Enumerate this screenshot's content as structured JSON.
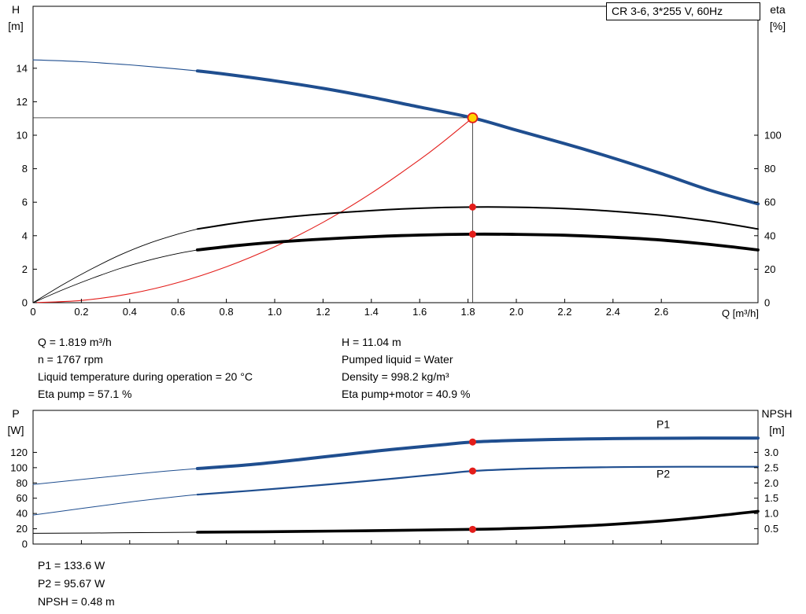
{
  "readings": {
    "top_left": [
      "Q = 1.819 m³/h",
      "n = 1767 rpm",
      "Liquid temperature during operation = 20 °C",
      "Eta pump = 57.1 %"
    ],
    "top_right": [
      "H = 11.04 m",
      "Pumped liquid = Water",
      "Density = 998.2 kg/m³",
      "Eta pump+motor = 40.9 %"
    ],
    "bottom": [
      "P1 = 133.6 W",
      "P2 = 95.67 W",
      "NPSH = 0.48 m"
    ]
  },
  "colors": {
    "blue": "#1f4e8f",
    "red": "#e31d1a",
    "black": "#000000",
    "duty_fill": "#ffd400"
  },
  "chart_data": [
    {
      "type": "line",
      "name": "head-efficiency-chart",
      "title": "CR 3-6, 3*255 V, 60Hz",
      "axes": {
        "x": {
          "min": 0,
          "max": 3.0,
          "label": "Q [m³/h]",
          "ticks": [
            0,
            0.2,
            0.4,
            0.6,
            0.8,
            1.0,
            1.2,
            1.4,
            1.6,
            1.8,
            2.0,
            2.2,
            2.4,
            2.6
          ],
          "tick_labels": [
            "0",
            "0.2",
            "0.4",
            "0.6",
            "0.8",
            "1.0",
            "1.2",
            "1.4",
            "1.6",
            "1.8",
            "2.0",
            "2.2",
            "2.4",
            "2.6"
          ]
        },
        "y_left": {
          "min": 0,
          "max": 17.7,
          "label": [
            "H",
            "[m]"
          ],
          "ticks": [
            0,
            2,
            4,
            6,
            8,
            10,
            12,
            14
          ],
          "tick_labels": [
            "0",
            "2",
            "4",
            "6",
            "8",
            "10",
            "12",
            "14"
          ]
        },
        "y_right": {
          "min": 0,
          "max": 177,
          "label": [
            "eta",
            "[%]"
          ],
          "ticks": [
            0,
            20,
            40,
            60,
            80,
            100
          ],
          "tick_labels": [
            "0",
            "20",
            "40",
            "60",
            "80",
            "100"
          ]
        }
      },
      "guides": [
        {
          "name": "duty-flow-line",
          "type": "v",
          "x": 1.819,
          "y1": 0,
          "y2": 11.04,
          "axis": "left"
        },
        {
          "name": "duty-head-line",
          "type": "h",
          "y": 11.04,
          "x1": 0,
          "x2": 1.819,
          "axis": "left"
        }
      ],
      "series": [
        {
          "name": "head-curve-lead",
          "axis": "left",
          "color": "#1f4e8f",
          "width": 1.1,
          "points": [
            [
              0,
              14.5
            ],
            [
              0.2,
              14.39
            ],
            [
              0.4,
              14.2
            ],
            [
              0.55,
              14.02
            ],
            [
              0.68,
              13.84
            ]
          ]
        },
        {
          "name": "head-curve",
          "axis": "left",
          "color": "#1f4e8f",
          "width": 4,
          "points": [
            [
              0.68,
              13.84
            ],
            [
              0.8,
              13.64
            ],
            [
              1.0,
              13.25
            ],
            [
              1.2,
              12.8
            ],
            [
              1.4,
              12.27
            ],
            [
              1.6,
              11.68
            ],
            [
              1.819,
              11.04
            ],
            [
              2.0,
              10.3
            ],
            [
              2.2,
              9.5
            ],
            [
              2.4,
              8.64
            ],
            [
              2.6,
              7.71
            ],
            [
              2.8,
              6.72
            ],
            [
              3.0,
              5.9
            ]
          ]
        },
        {
          "name": "system-curve",
          "axis": "left",
          "color": "#e31d1a",
          "width": 1.1,
          "points": [
            [
              0,
              0
            ],
            [
              0.2,
              0.13
            ],
            [
              0.4,
              0.53
            ],
            [
              0.6,
              1.2
            ],
            [
              0.8,
              2.14
            ],
            [
              1.0,
              3.34
            ],
            [
              1.2,
              4.8
            ],
            [
              1.4,
              6.54
            ],
            [
              1.6,
              8.54
            ],
            [
              1.7,
              9.64
            ],
            [
              1.819,
              11.04
            ]
          ]
        },
        {
          "name": "eta-pump-curve-lead",
          "axis": "right",
          "color": "#000000",
          "width": 0.9,
          "points": [
            [
              0,
              0
            ],
            [
              0.12,
              10.5
            ],
            [
              0.24,
              20
            ],
            [
              0.36,
              28.5
            ],
            [
              0.48,
              35.5
            ],
            [
              0.6,
              41
            ],
            [
              0.68,
              44
            ]
          ]
        },
        {
          "name": "eta-pump-curve",
          "axis": "right",
          "color": "#000000",
          "width": 2,
          "points": [
            [
              0.68,
              44
            ],
            [
              0.85,
              47.8
            ],
            [
              1.0,
              50.4
            ],
            [
              1.2,
              53
            ],
            [
              1.4,
              55
            ],
            [
              1.6,
              56.4
            ],
            [
              1.819,
              57.1
            ],
            [
              2.0,
              57
            ],
            [
              2.2,
              56.2
            ],
            [
              2.4,
              54.6
            ],
            [
              2.6,
              52.2
            ],
            [
              2.8,
              48.7
            ],
            [
              3.0,
              44
            ]
          ]
        },
        {
          "name": "eta-pump-motor-curve-lead",
          "axis": "right",
          "color": "#000000",
          "width": 0.9,
          "points": [
            [
              0,
              0
            ],
            [
              0.12,
              7.5
            ],
            [
              0.24,
              14.3
            ],
            [
              0.36,
              20.4
            ],
            [
              0.48,
              25.4
            ],
            [
              0.6,
              29.4
            ],
            [
              0.68,
              31.5
            ]
          ]
        },
        {
          "name": "eta-pump-motor-curve",
          "axis": "right",
          "color": "#000000",
          "width": 3.8,
          "points": [
            [
              0.68,
              31.5
            ],
            [
              0.85,
              34.2
            ],
            [
              1.0,
              36.1
            ],
            [
              1.2,
              38
            ],
            [
              1.4,
              39.4
            ],
            [
              1.6,
              40.4
            ],
            [
              1.819,
              40.9
            ],
            [
              2.0,
              40.8
            ],
            [
              2.2,
              40.3
            ],
            [
              2.4,
              39.1
            ],
            [
              2.6,
              37.4
            ],
            [
              2.8,
              34.8
            ],
            [
              3.0,
              31.5
            ]
          ]
        }
      ],
      "markers": [
        {
          "name": "duty-point",
          "x": 1.819,
          "y": 11.04,
          "axis": "left",
          "r": 6,
          "fill": "#ffd400",
          "stroke": "#e31d1a",
          "stroke_width": 1.8
        },
        {
          "name": "eta-pump-point",
          "x": 1.819,
          "y": 57.1,
          "axis": "right",
          "r": 4.5,
          "fill": "#e31d1a"
        },
        {
          "name": "eta-pump-motor-point",
          "x": 1.819,
          "y": 40.9,
          "axis": "right",
          "r": 4.5,
          "fill": "#e31d1a"
        }
      ],
      "labels": []
    },
    {
      "type": "line",
      "name": "power-npsh-chart",
      "axes": {
        "x": {
          "min": 0,
          "max": 3.0,
          "label": "",
          "ticks": [
            0,
            0.2,
            0.4,
            0.6,
            0.8,
            1.0,
            1.2,
            1.4,
            1.6,
            1.8,
            2.0,
            2.2,
            2.4,
            2.6
          ],
          "tick_labels": null
        },
        "y_left": {
          "min": 0,
          "max": 175,
          "label": [
            "P",
            "[W]"
          ],
          "ticks": [
            0,
            20,
            40,
            60,
            80,
            100,
            120
          ],
          "tick_labels": [
            "0",
            "20",
            "40",
            "60",
            "80",
            "100",
            "120"
          ]
        },
        "y_right": {
          "min": 0,
          "max": 4.375,
          "label": [
            "NPSH",
            "[m]"
          ],
          "ticks": [
            0.5,
            1.0,
            1.5,
            2.0,
            2.5,
            3.0
          ],
          "tick_labels": [
            "0.5",
            "1.0",
            "1.5",
            "2.0",
            "2.5",
            "3.0"
          ]
        }
      },
      "guides": [],
      "series": [
        {
          "name": "p1-curve-lead",
          "axis": "left",
          "color": "#1f4e8f",
          "width": 1,
          "points": [
            [
              0,
              78
            ],
            [
              0.2,
              84.5
            ],
            [
              0.4,
              91
            ],
            [
              0.55,
              95.5
            ],
            [
              0.68,
              98.8
            ]
          ]
        },
        {
          "name": "p1-curve",
          "axis": "left",
          "color": "#1f4e8f",
          "width": 4,
          "points": [
            [
              0.68,
              98.8
            ],
            [
              0.9,
              104
            ],
            [
              1.1,
              110.5
            ],
            [
              1.3,
              117.5
            ],
            [
              1.5,
              124.3
            ],
            [
              1.7,
              130.2
            ],
            [
              1.819,
              133.6
            ],
            [
              2.0,
              135.8
            ],
            [
              2.2,
              137.2
            ],
            [
              2.4,
              138
            ],
            [
              2.6,
              138.5
            ],
            [
              2.8,
              138.7
            ],
            [
              3.0,
              138.7
            ]
          ]
        },
        {
          "name": "p2-curve-lead",
          "axis": "left",
          "color": "#1f4e8f",
          "width": 1,
          "points": [
            [
              0,
              38
            ],
            [
              0.2,
              46.5
            ],
            [
              0.4,
              55
            ],
            [
              0.55,
              60.5
            ],
            [
              0.68,
              64.8
            ]
          ]
        },
        {
          "name": "p2-curve",
          "axis": "left",
          "color": "#1f4e8f",
          "width": 2.2,
          "points": [
            [
              0.68,
              64.8
            ],
            [
              0.9,
              69.8
            ],
            [
              1.1,
              74.8
            ],
            [
              1.3,
              80.2
            ],
            [
              1.5,
              86
            ],
            [
              1.7,
              92
            ],
            [
              1.819,
              95.67
            ],
            [
              2.0,
              98.2
            ],
            [
              2.2,
              99.8
            ],
            [
              2.4,
              100.7
            ],
            [
              2.6,
              101.1
            ],
            [
              2.8,
              101.2
            ],
            [
              3.0,
              101.2
            ]
          ]
        },
        {
          "name": "npsh-curve-lead",
          "axis": "right",
          "color": "#000000",
          "width": 1,
          "points": [
            [
              0,
              0.35
            ],
            [
              0.25,
              0.36
            ],
            [
              0.5,
              0.375
            ],
            [
              0.68,
              0.385
            ]
          ]
        },
        {
          "name": "npsh-curve",
          "axis": "right",
          "color": "#000000",
          "width": 3.6,
          "points": [
            [
              0.68,
              0.385
            ],
            [
              0.95,
              0.402
            ],
            [
              1.25,
              0.425
            ],
            [
              1.55,
              0.452
            ],
            [
              1.819,
              0.48
            ],
            [
              2.0,
              0.512
            ],
            [
              2.2,
              0.565
            ],
            [
              2.4,
              0.645
            ],
            [
              2.6,
              0.755
            ],
            [
              2.8,
              0.9
            ],
            [
              3.0,
              1.07
            ]
          ]
        }
      ],
      "markers": [
        {
          "name": "p1-point",
          "x": 1.819,
          "y": 133.6,
          "axis": "left",
          "r": 4.5,
          "fill": "#e31d1a"
        },
        {
          "name": "p2-point",
          "x": 1.819,
          "y": 95.67,
          "axis": "left",
          "r": 4.5,
          "fill": "#e31d1a"
        },
        {
          "name": "npsh-point",
          "x": 1.819,
          "y": 0.48,
          "axis": "right",
          "r": 4.5,
          "fill": "#e31d1a"
        }
      ],
      "labels": [
        {
          "name": "p1-curve-label",
          "text": "P1",
          "x": 2.58,
          "y": 152,
          "axis": "left",
          "color": "#1f4e8f"
        },
        {
          "name": "p2-curve-label",
          "text": "P2",
          "x": 2.58,
          "y": 87,
          "axis": "left",
          "color": "#1f4e8f"
        }
      ]
    }
  ]
}
